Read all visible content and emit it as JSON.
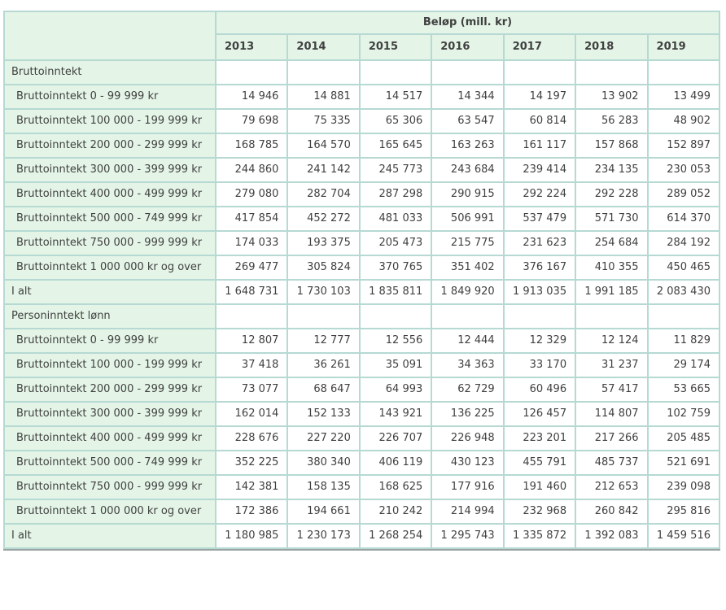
{
  "colors": {
    "grid_line": "#b6d9d3",
    "header_cell_background": "#e4f5e7",
    "text": "#404040",
    "table_bottom_border": "#9aa3a2",
    "data_cell_background": "#ffffff"
  },
  "table": {
    "column_group_header": "Beløp (mill. kr)",
    "years": [
      "2013",
      "2014",
      "2015",
      "2016",
      "2017",
      "2018",
      "2019"
    ],
    "sections": [
      {
        "title": "Bruttoinntekt",
        "rows": [
          {
            "label": "Bruttoinntekt 0 - 99 999 kr",
            "total": false,
            "values": [
              "14 946",
              "14 881",
              "14 517",
              "14 344",
              "14 197",
              "13 902",
              "13 499"
            ]
          },
          {
            "label": "Bruttoinntekt 100 000 - 199 999 kr",
            "total": false,
            "values": [
              "79 698",
              "75 335",
              "65 306",
              "63 547",
              "60 814",
              "56 283",
              "48 902"
            ]
          },
          {
            "label": "Bruttoinntekt 200 000 - 299 999 kr",
            "total": false,
            "values": [
              "168 785",
              "164 570",
              "165 645",
              "163 263",
              "161 117",
              "157 868",
              "152 897"
            ]
          },
          {
            "label": "Bruttoinntekt 300 000 - 399 999 kr",
            "total": false,
            "values": [
              "244 860",
              "241 142",
              "245 773",
              "243 684",
              "239 414",
              "234 135",
              "230 053"
            ]
          },
          {
            "label": "Bruttoinntekt 400 000 - 499 999 kr",
            "total": false,
            "values": [
              "279 080",
              "282 704",
              "287 298",
              "290 915",
              "292 224",
              "292 228",
              "289 052"
            ]
          },
          {
            "label": "Bruttoinntekt 500 000 - 749 999 kr",
            "total": false,
            "values": [
              "417 854",
              "452 272",
              "481 033",
              "506 991",
              "537 479",
              "571 730",
              "614 370"
            ]
          },
          {
            "label": "Bruttoinntekt 750 000 - 999 999 kr",
            "total": false,
            "values": [
              "174 033",
              "193 375",
              "205 473",
              "215 775",
              "231 623",
              "254 684",
              "284 192"
            ]
          },
          {
            "label": "Bruttoinntekt 1 000 000 kr og over",
            "total": false,
            "values": [
              "269 477",
              "305 824",
              "370 765",
              "351 402",
              "376 167",
              "410 355",
              "450 465"
            ]
          },
          {
            "label": "I alt",
            "total": true,
            "values": [
              "1 648 731",
              "1 730 103",
              "1 835 811",
              "1 849 920",
              "1 913 035",
              "1 991 185",
              "2 083 430"
            ]
          }
        ]
      },
      {
        "title": "Personinntekt lønn",
        "rows": [
          {
            "label": "Bruttoinntekt 0 - 99 999 kr",
            "total": false,
            "values": [
              "12 807",
              "12 777",
              "12 556",
              "12 444",
              "12 329",
              "12 124",
              "11 829"
            ]
          },
          {
            "label": "Bruttoinntekt 100 000 - 199 999 kr",
            "total": false,
            "values": [
              "37 418",
              "36 261",
              "35 091",
              "34 363",
              "33 170",
              "31 237",
              "29 174"
            ]
          },
          {
            "label": "Bruttoinntekt 200 000 - 299 999 kr",
            "total": false,
            "values": [
              "73 077",
              "68 647",
              "64 993",
              "62 729",
              "60 496",
              "57 417",
              "53 665"
            ]
          },
          {
            "label": "Bruttoinntekt 300 000 - 399 999 kr",
            "total": false,
            "values": [
              "162 014",
              "152 133",
              "143 921",
              "136 225",
              "126 457",
              "114 807",
              "102 759"
            ]
          },
          {
            "label": "Bruttoinntekt 400 000 - 499 999 kr",
            "total": false,
            "values": [
              "228 676",
              "227 220",
              "226 707",
              "226 948",
              "223 201",
              "217 266",
              "205 485"
            ]
          },
          {
            "label": "Bruttoinntekt 500 000 - 749 999 kr",
            "total": false,
            "values": [
              "352 225",
              "380 340",
              "406 119",
              "430 123",
              "455 791",
              "485 737",
              "521 691"
            ]
          },
          {
            "label": "Bruttoinntekt 750 000 - 999 999 kr",
            "total": false,
            "values": [
              "142 381",
              "158 135",
              "168 625",
              "177 916",
              "191 460",
              "212 653",
              "239 098"
            ]
          },
          {
            "label": "Bruttoinntekt 1 000 000 kr og over",
            "total": false,
            "values": [
              "172 386",
              "194 661",
              "210 242",
              "214 994",
              "232 968",
              "260 842",
              "295 816"
            ]
          },
          {
            "label": "I alt",
            "total": true,
            "values": [
              "1 180 985",
              "1 230 173",
              "1 268 254",
              "1 295 743",
              "1 335 872",
              "1 392 083",
              "1 459 516"
            ]
          }
        ]
      }
    ]
  }
}
